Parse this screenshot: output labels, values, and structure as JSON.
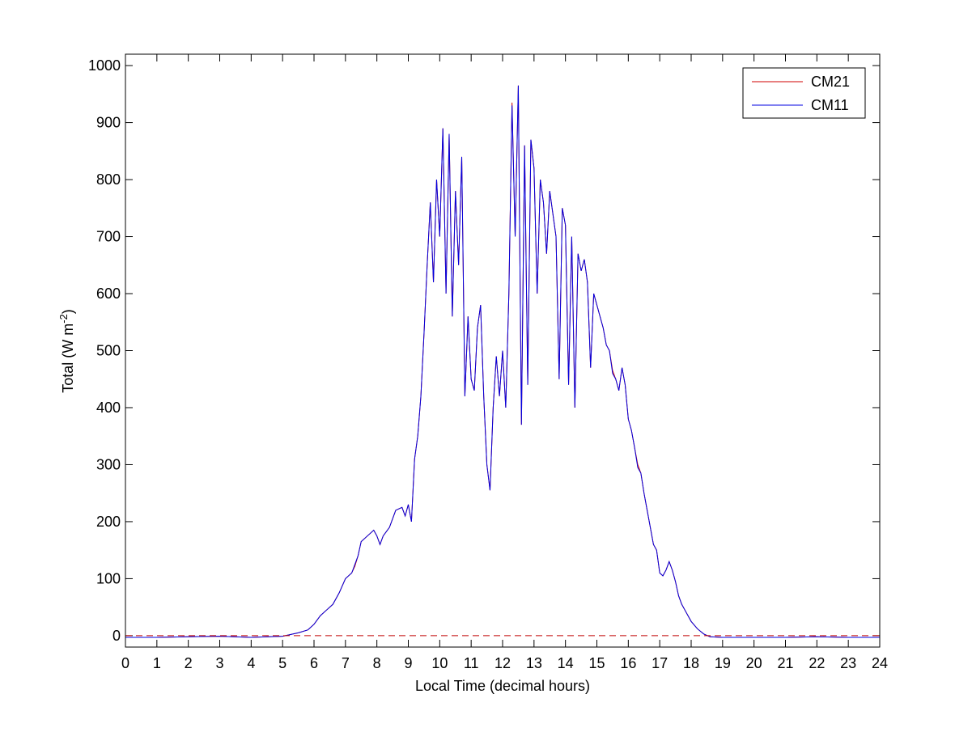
{
  "chart_data": {
    "type": "line",
    "xlabel": "Local Time (decimal hours)",
    "ylabel": {
      "text": "Total (W m",
      "sup": "-2",
      "tail": ")"
    },
    "x": [
      0,
      1,
      2,
      3,
      4,
      5,
      5.5,
      5.8,
      6,
      6.2,
      6.4,
      6.6,
      6.8,
      7,
      7.2,
      7.3,
      7.4,
      7.5,
      7.7,
      7.9,
      8,
      8.1,
      8.2,
      8.4,
      8.6,
      8.8,
      8.9,
      9,
      9.1,
      9.2,
      9.3,
      9.4,
      9.5,
      9.6,
      9.7,
      9.8,
      9.9,
      10,
      10.1,
      10.2,
      10.3,
      10.4,
      10.5,
      10.6,
      10.7,
      10.8,
      10.9,
      11,
      11.1,
      11.2,
      11.3,
      11.4,
      11.5,
      11.6,
      11.7,
      11.8,
      11.9,
      12,
      12.1,
      12.2,
      12.3,
      12.4,
      12.5,
      12.6,
      12.7,
      12.8,
      12.9,
      13,
      13.1,
      13.2,
      13.3,
      13.4,
      13.5,
      13.6,
      13.7,
      13.8,
      13.9,
      14,
      14.1,
      14.2,
      14.3,
      14.4,
      14.5,
      14.6,
      14.7,
      14.8,
      14.9,
      15,
      15.1,
      15.2,
      15.3,
      15.4,
      15.5,
      15.6,
      15.7,
      15.8,
      15.9,
      16,
      16.1,
      16.2,
      16.3,
      16.4,
      16.5,
      16.6,
      16.7,
      16.8,
      16.9,
      17,
      17.1,
      17.2,
      17.3,
      17.4,
      17.5,
      17.6,
      17.7,
      17.8,
      17.9,
      18,
      18.2,
      18.4,
      18.6,
      19,
      20,
      21,
      22,
      23,
      24
    ],
    "series": [
      {
        "name": "CM21",
        "color": "#d00000",
        "values": [
          -3,
          -3,
          -2,
          -1,
          -3,
          -1,
          5,
          10,
          20,
          35,
          45,
          55,
          75,
          100,
          110,
          122,
          140,
          165,
          175,
          185,
          175,
          160,
          175,
          190,
          220,
          225,
          210,
          230,
          200,
          310,
          350,
          420,
          530,
          650,
          760,
          620,
          800,
          700,
          890,
          600,
          880,
          560,
          780,
          650,
          840,
          420,
          560,
          450,
          430,
          540,
          580,
          420,
          300,
          255,
          400,
          490,
          420,
          500,
          400,
          600,
          935,
          700,
          965,
          370,
          860,
          440,
          870,
          820,
          600,
          800,
          760,
          670,
          780,
          740,
          700,
          450,
          750,
          720,
          440,
          700,
          400,
          670,
          640,
          660,
          620,
          470,
          600,
          580,
          560,
          540,
          510,
          500,
          465,
          450,
          430,
          470,
          440,
          380,
          360,
          330,
          300,
          285,
          250,
          220,
          190,
          160,
          150,
          110,
          105,
          115,
          130,
          115,
          95,
          70,
          55,
          45,
          35,
          25,
          12,
          3,
          -2,
          -3,
          -3,
          -3,
          -2,
          -3,
          -3
        ]
      },
      {
        "name": "CM11",
        "color": "#0000e0",
        "values": [
          -3,
          -3,
          -2,
          -1,
          -3,
          -1,
          5,
          10,
          20,
          35,
          45,
          55,
          75,
          100,
          110,
          125,
          140,
          165,
          175,
          185,
          175,
          160,
          175,
          190,
          220,
          225,
          210,
          230,
          200,
          310,
          350,
          420,
          530,
          650,
          760,
          620,
          800,
          700,
          890,
          600,
          880,
          560,
          780,
          650,
          840,
          420,
          560,
          450,
          430,
          540,
          580,
          420,
          300,
          255,
          400,
          490,
          420,
          500,
          400,
          600,
          930,
          700,
          965,
          370,
          860,
          440,
          870,
          820,
          600,
          800,
          760,
          670,
          780,
          740,
          700,
          450,
          750,
          720,
          440,
          700,
          400,
          670,
          640,
          660,
          620,
          470,
          600,
          580,
          560,
          540,
          510,
          500,
          460,
          450,
          430,
          470,
          440,
          380,
          360,
          330,
          295,
          285,
          250,
          220,
          190,
          160,
          150,
          110,
          105,
          115,
          130,
          115,
          95,
          70,
          55,
          45,
          35,
          25,
          12,
          3,
          -2,
          -3,
          -3,
          -3,
          -2,
          -3,
          -3
        ]
      }
    ],
    "reference_line": {
      "value": 0,
      "color": "#c00000",
      "dashed": true
    },
    "xlim": [
      0,
      24
    ],
    "xticks": [
      0,
      1,
      2,
      3,
      4,
      5,
      6,
      7,
      8,
      9,
      10,
      11,
      12,
      13,
      14,
      15,
      16,
      17,
      18,
      19,
      20,
      21,
      22,
      23,
      24
    ],
    "ylim": [
      -20,
      1020
    ],
    "yticks": [
      0,
      100,
      200,
      300,
      400,
      500,
      600,
      700,
      800,
      900,
      1000
    ],
    "grid": false,
    "legend": "northeast"
  }
}
